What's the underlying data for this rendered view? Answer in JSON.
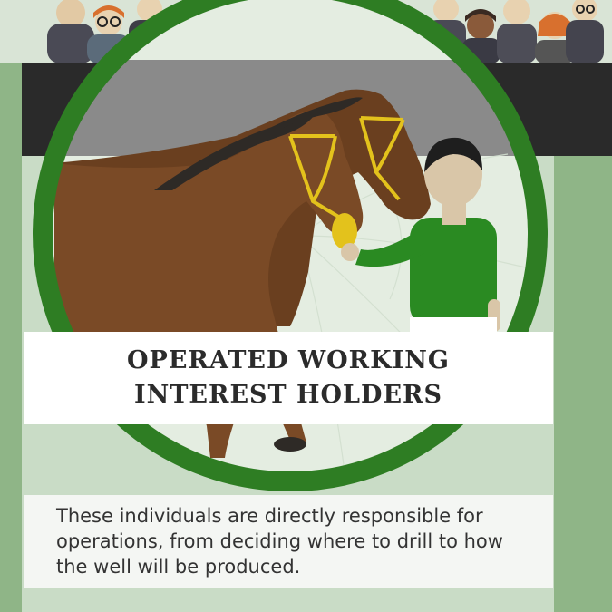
{
  "title": {
    "line1": "OPERATED WORKING",
    "line2": "INTEREST HOLDERS"
  },
  "description": "These individuals are directly responsible for operations, from deciding where to drill to how the well will be produced.",
  "colors": {
    "background": "#8fb587",
    "panel": "#c9dcc6",
    "ring": "#2e7d23",
    "horse": "#7a4a26",
    "bridle": "#e3c21c",
    "shirt": "#2a8a22"
  }
}
